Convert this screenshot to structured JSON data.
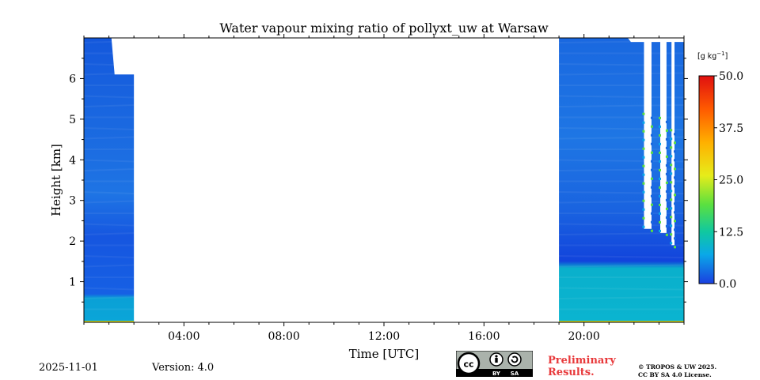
{
  "chart_data": {
    "type": "heatmap",
    "title": "Water vapour mixing ratio of pollyxt_uw at Warsaw",
    "xlabel": "Time [UTC]",
    "ylabel": "Height [km]",
    "xlim_hours": [
      0,
      24
    ],
    "ylim_km": [
      0,
      7
    ],
    "x_ticks": [
      {
        "hour": 4,
        "label": "04:00"
      },
      {
        "hour": 8,
        "label": "08:00"
      },
      {
        "hour": 12,
        "label": "12:00"
      },
      {
        "hour": 16,
        "label": "16:00"
      },
      {
        "hour": 20,
        "label": "20:00"
      }
    ],
    "x_minor_step_hours": 1,
    "y_ticks": [
      {
        "km": 1,
        "label": "1"
      },
      {
        "km": 2,
        "label": "2"
      },
      {
        "km": 3,
        "label": "3"
      },
      {
        "km": 4,
        "label": "4"
      },
      {
        "km": 5,
        "label": "5"
      },
      {
        "km": 6,
        "label": "6"
      }
    ],
    "y_minor_step_km": 0.5,
    "colorbar": {
      "label": "[g kg",
      "label_exp": "−1",
      "label_close": "]",
      "min": 0,
      "max": 50,
      "ticks": [
        {
          "value": 0,
          "label": "0.0"
        },
        {
          "value": 12.5,
          "label": "12.5"
        },
        {
          "value": 25,
          "label": "25.0"
        },
        {
          "value": 37.5,
          "label": "37.5"
        },
        {
          "value": 50,
          "label": "50.0"
        }
      ],
      "colors": [
        "#1a3fe0",
        "#0aa8e8",
        "#10c8a0",
        "#5ae040",
        "#e6ec1a",
        "#ffb000",
        "#ff5a00",
        "#e01010"
      ]
    },
    "data_segments": [
      {
        "start_hour": 0.0,
        "end_hour": 2.0,
        "top_km_early": 7.0,
        "top_km_late": 6.1,
        "bottom_layer_top_km": 0.6
      },
      {
        "start_hour": 19.0,
        "end_hour": 24.0,
        "top_km_early": 7.0,
        "top_km_late": 6.9,
        "bottom_layer_top_km": 1.4
      }
    ],
    "cloud_gaps": [
      {
        "start_hour": 22.4,
        "end_hour": 22.7,
        "bottom_km": 2.3
      },
      {
        "start_hour": 23.05,
        "end_hour": 23.3,
        "bottom_km": 2.2
      },
      {
        "start_hour": 23.5,
        "end_hour": 23.62,
        "bottom_km": 1.9
      }
    ],
    "surface_value_color": "#c8d020"
  },
  "footer": {
    "date": "2025-11-01",
    "version_label": "Version:",
    "version": "4.0",
    "preliminary_line1": "Preliminary",
    "preliminary_line2": "Results.",
    "copyright_line1": "© TROPOS & UW 2025.",
    "copyright_line2": "CC BY SA 4.0 License.",
    "cc_text": "cc",
    "cc_by": "BY",
    "cc_sa": "SA"
  }
}
